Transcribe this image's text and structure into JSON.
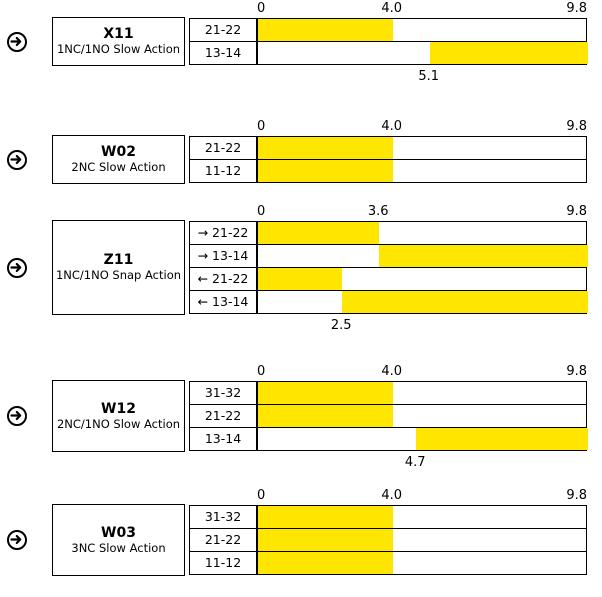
{
  "scale": {
    "min": 0,
    "max": 9.8
  },
  "fill_color": "#ffe600",
  "icon": "arrow-circle-right-icon",
  "diagrams": [
    {
      "code": "X11",
      "description": "1NC/1NO Slow Action",
      "ticks": [
        "0",
        "4.0",
        "9.8"
      ],
      "tick_values": [
        0,
        4.0,
        9.8
      ],
      "contacts": [
        {
          "label": "21-22",
          "on_from": 0,
          "on_to": 4.0
        },
        {
          "label": "13-14",
          "on_from": 5.1,
          "on_to": 9.8
        }
      ],
      "bottom_marker": "5.1",
      "bottom_marker_value": 5.1
    },
    {
      "code": "W02",
      "description": "2NC Slow Action",
      "ticks": [
        "0",
        "4.0",
        "9.8"
      ],
      "tick_values": [
        0,
        4.0,
        9.8
      ],
      "contacts": [
        {
          "label": "21-22",
          "on_from": 0,
          "on_to": 4.0
        },
        {
          "label": "11-12",
          "on_from": 0,
          "on_to": 4.0
        }
      ],
      "bottom_marker": "",
      "bottom_marker_value": null
    },
    {
      "code": "Z11",
      "description": "1NC/1NO Snap Action",
      "ticks": [
        "0",
        "3.6",
        "9.8"
      ],
      "tick_values": [
        0,
        3.6,
        9.8
      ],
      "contacts": [
        {
          "label": "→ 21-22",
          "on_from": 0,
          "on_to": 3.6
        },
        {
          "label": "→ 13-14",
          "on_from": 3.6,
          "on_to": 9.8
        },
        {
          "label": "← 21-22",
          "on_from": 0,
          "on_to": 2.5
        },
        {
          "label": "← 13-14",
          "on_from": 2.5,
          "on_to": 9.8
        }
      ],
      "bottom_marker": "2.5",
      "bottom_marker_value": 2.5
    },
    {
      "code": "W12",
      "description": "2NC/1NO Slow Action",
      "ticks": [
        "0",
        "4.0",
        "9.8"
      ],
      "tick_values": [
        0,
        4.0,
        9.8
      ],
      "contacts": [
        {
          "label": "31-32",
          "on_from": 0,
          "on_to": 4.0
        },
        {
          "label": "21-22",
          "on_from": 0,
          "on_to": 4.0
        },
        {
          "label": "13-14",
          "on_from": 4.7,
          "on_to": 9.8
        }
      ],
      "bottom_marker": "4.7",
      "bottom_marker_value": 4.7
    },
    {
      "code": "W03",
      "description": "3NC Slow Action",
      "ticks": [
        "0",
        "4.0",
        "9.8"
      ],
      "tick_values": [
        0,
        4.0,
        9.8
      ],
      "contacts": [
        {
          "label": "31-32",
          "on_from": 0,
          "on_to": 4.0
        },
        {
          "label": "21-22",
          "on_from": 0,
          "on_to": 4.0
        },
        {
          "label": "11-12",
          "on_from": 0,
          "on_to": 4.0
        }
      ],
      "bottom_marker": "",
      "bottom_marker_value": null
    }
  ]
}
